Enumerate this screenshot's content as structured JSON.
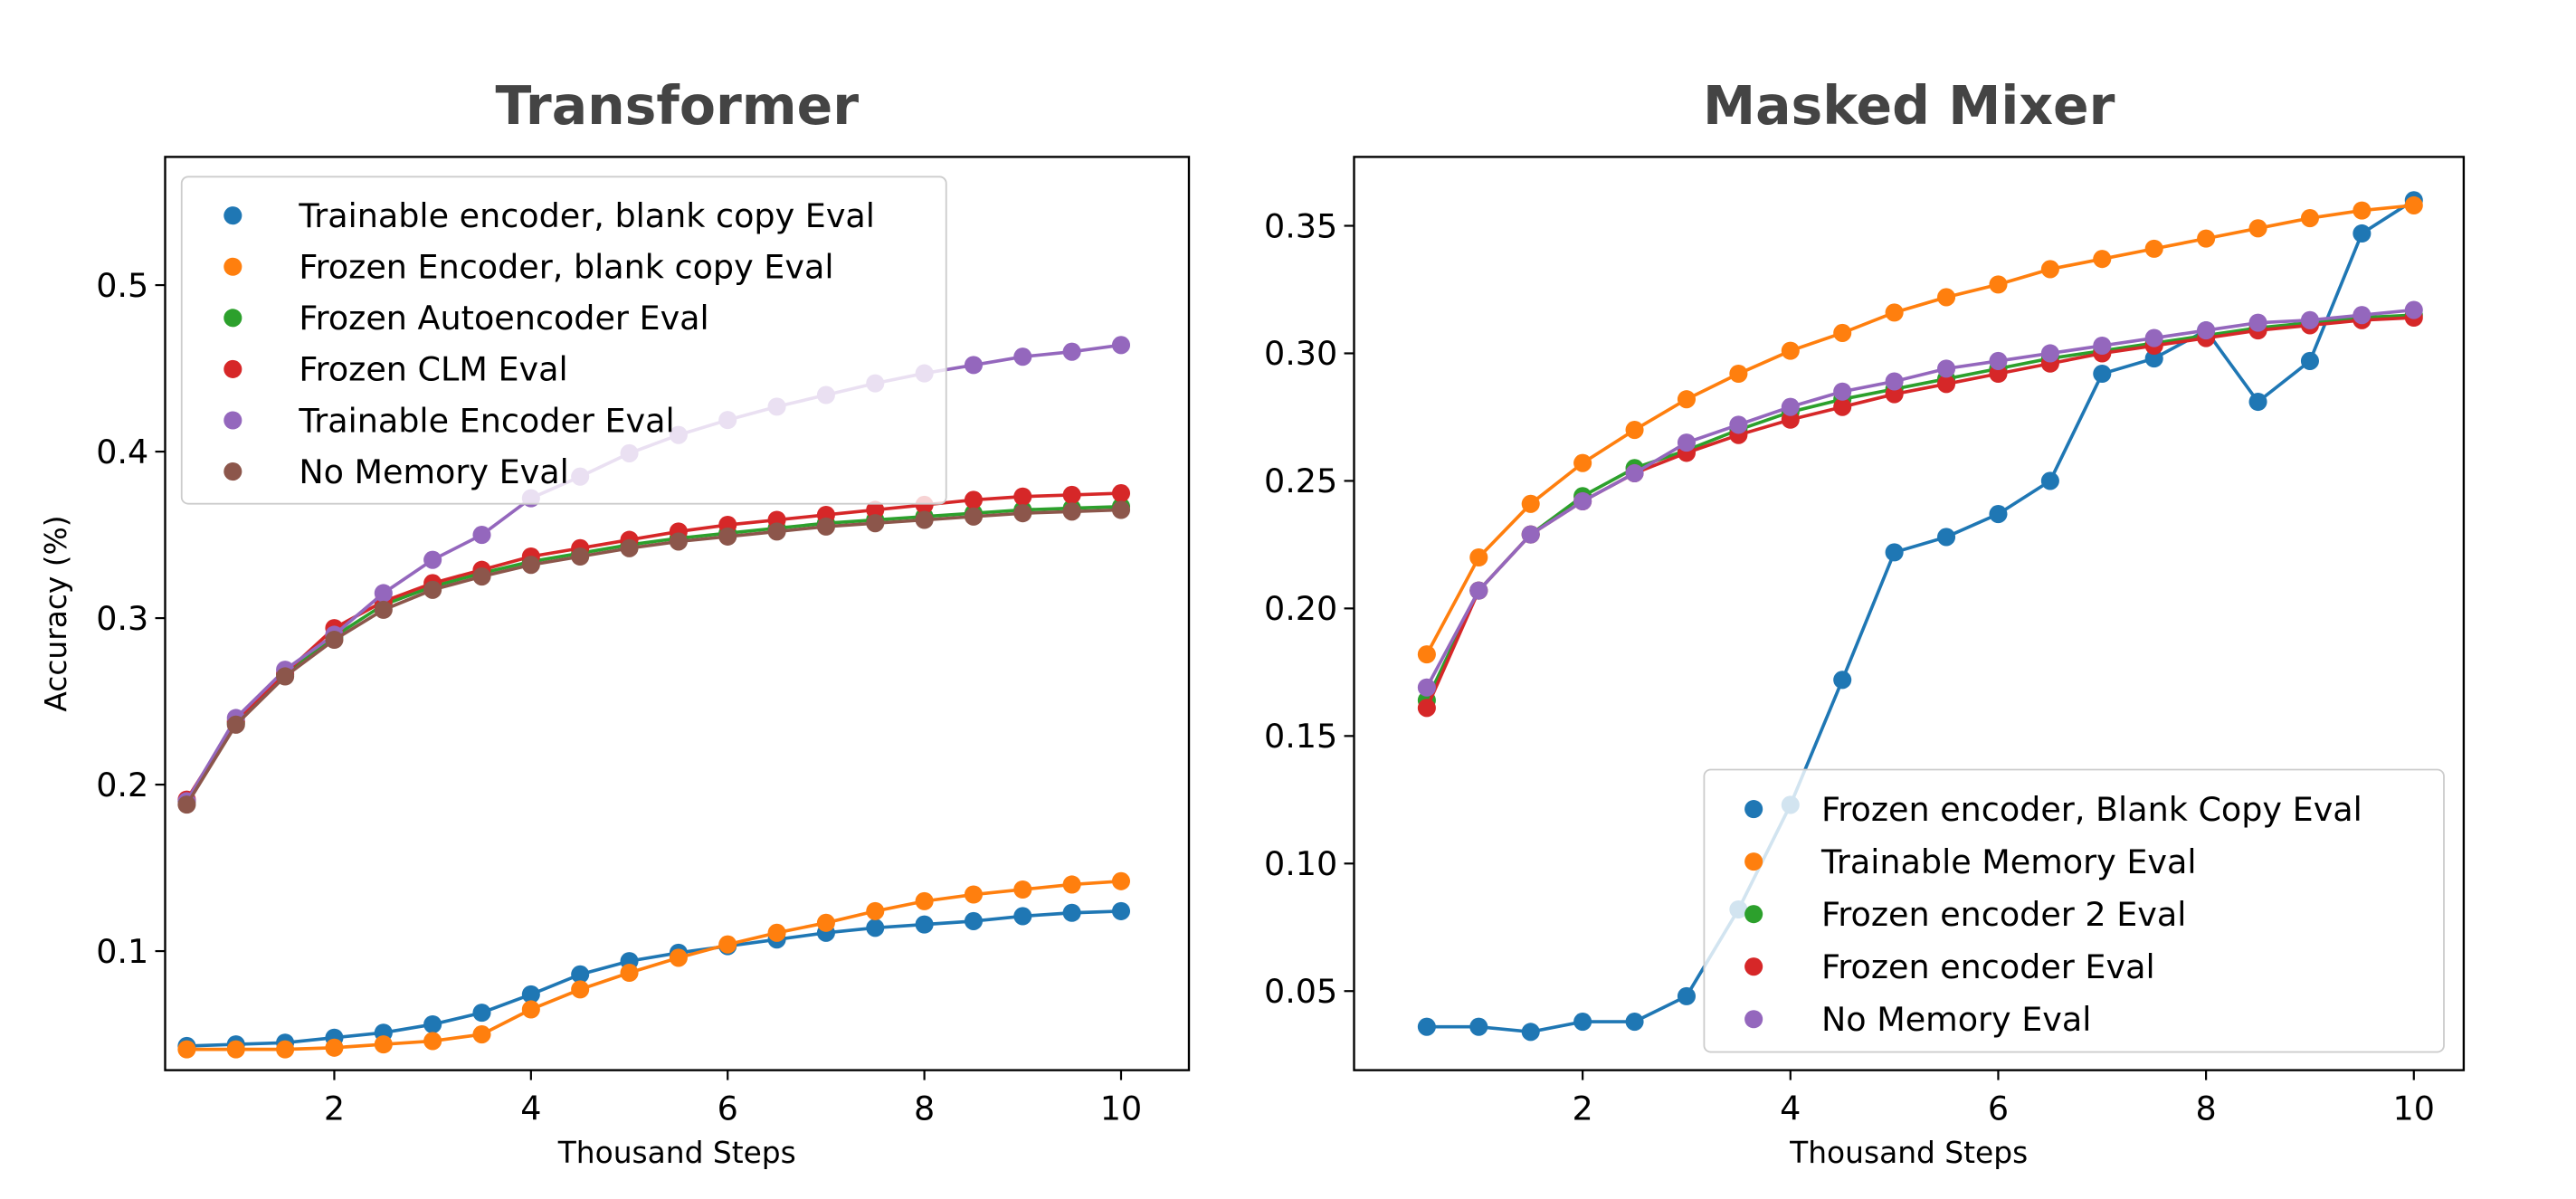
{
  "chart_data": [
    {
      "type": "line",
      "title": "Transformer",
      "xlabel": "Thousand Steps",
      "ylabel": "Accuracy (%)",
      "xlim": [
        0.28,
        10.69
      ],
      "ylim": [
        0.0285,
        0.577
      ],
      "xticks": [
        2,
        4,
        6,
        8,
        10
      ],
      "yticks": [
        0.1,
        0.2,
        0.3,
        0.4,
        0.5
      ],
      "ytick_labels": [
        "0.1",
        "0.2",
        "0.3",
        "0.4",
        "0.5"
      ],
      "grid": false,
      "legend_position": "top-left",
      "x": [
        0.5,
        1,
        1.5,
        2,
        2.5,
        3,
        3.5,
        4,
        4.5,
        5,
        5.5,
        6,
        6.5,
        7,
        7.5,
        8,
        8.5,
        9,
        9.5,
        10
      ],
      "series": [
        {
          "name": "Trainable encoder, blank copy Eval",
          "color": "#1f77b4",
          "values": [
            0.043,
            0.044,
            0.045,
            0.048,
            0.051,
            0.056,
            0.063,
            0.074,
            0.086,
            0.094,
            0.099,
            0.103,
            0.107,
            0.111,
            0.114,
            0.116,
            0.118,
            0.121,
            0.123,
            0.124
          ]
        },
        {
          "name": "Frozen Encoder, blank copy Eval",
          "color": "#ff7f0e",
          "values": [
            0.041,
            0.041,
            0.041,
            0.042,
            0.044,
            0.046,
            0.05,
            0.065,
            0.077,
            0.087,
            0.096,
            0.104,
            0.111,
            0.117,
            0.124,
            0.13,
            0.134,
            0.137,
            0.14,
            0.142
          ]
        },
        {
          "name": "Frozen Autoencoder Eval",
          "color": "#2ca02c",
          "values": [
            0.19,
            0.237,
            0.266,
            0.289,
            0.308,
            0.319,
            0.327,
            0.334,
            0.339,
            0.344,
            0.348,
            0.351,
            0.354,
            0.357,
            0.359,
            0.361,
            0.363,
            0.365,
            0.366,
            0.367
          ]
        },
        {
          "name": "Frozen CLM Eval",
          "color": "#d62728",
          "values": [
            0.191,
            0.238,
            0.267,
            0.294,
            0.31,
            0.321,
            0.329,
            0.337,
            0.342,
            0.347,
            0.352,
            0.356,
            0.359,
            0.362,
            0.365,
            0.368,
            0.371,
            0.373,
            0.374,
            0.375
          ]
        },
        {
          "name": "Trainable Encoder Eval",
          "color": "#9467bd",
          "values": [
            0.19,
            0.24,
            0.269,
            0.29,
            0.315,
            0.335,
            0.35,
            0.372,
            0.385,
            0.399,
            0.41,
            0.419,
            0.427,
            0.434,
            0.441,
            0.447,
            0.452,
            0.457,
            0.46,
            0.464
          ]
        },
        {
          "name": "No Memory Eval",
          "color": "#8c564b",
          "values": [
            0.188,
            0.236,
            0.265,
            0.287,
            0.305,
            0.317,
            0.325,
            0.332,
            0.337,
            0.342,
            0.346,
            0.349,
            0.352,
            0.355,
            0.357,
            0.359,
            0.361,
            0.363,
            0.364,
            0.365
          ]
        }
      ]
    },
    {
      "type": "line",
      "title": "Masked Mixer",
      "xlabel": "Thousand Steps",
      "ylabel": "",
      "xlim": [
        -0.2,
        10.48
      ],
      "ylim": [
        0.019,
        0.377
      ],
      "xticks": [
        2,
        4,
        6,
        8,
        10
      ],
      "yticks": [
        0.05,
        0.1,
        0.15,
        0.2,
        0.25,
        0.3,
        0.35
      ],
      "ytick_labels": [
        "0.05",
        "0.10",
        "0.15",
        "0.20",
        "0.25",
        "0.30",
        "0.35"
      ],
      "grid": false,
      "legend_position": "bottom-right",
      "x": [
        0.5,
        1,
        1.5,
        2,
        2.5,
        3,
        3.5,
        4,
        4.5,
        5,
        5.5,
        6,
        6.5,
        7,
        7.5,
        8,
        8.5,
        9,
        9.5,
        10
      ],
      "series": [
        {
          "name": "Frozen encoder, Blank Copy Eval",
          "color": "#1f77b4",
          "values": [
            0.036,
            0.036,
            0.034,
            0.038,
            0.038,
            0.048,
            0.082,
            0.123,
            0.172,
            0.222,
            0.228,
            0.237,
            0.25,
            0.292,
            0.298,
            0.309,
            0.281,
            0.297,
            0.347,
            0.36
          ]
        },
        {
          "name": "Trainable Memory Eval",
          "color": "#ff7f0e",
          "values": [
            0.182,
            0.22,
            0.241,
            0.257,
            0.27,
            0.282,
            0.292,
            0.301,
            0.308,
            0.316,
            0.322,
            0.327,
            0.333,
            0.337,
            0.341,
            0.345,
            0.349,
            0.353,
            0.356,
            0.358
          ]
        },
        {
          "name": "Frozen encoder 2 Eval",
          "color": "#2ca02c",
          "values": [
            0.164,
            0.207,
            0.229,
            0.244,
            0.255,
            0.262,
            0.27,
            0.277,
            0.282,
            0.286,
            0.29,
            0.294,
            0.298,
            0.301,
            0.304,
            0.307,
            0.31,
            0.312,
            0.314,
            0.315
          ]
        },
        {
          "name": "Frozen encoder Eval",
          "color": "#d62728",
          "values": [
            0.161,
            0.207,
            0.229,
            0.242,
            0.253,
            0.261,
            0.268,
            0.274,
            0.279,
            0.284,
            0.288,
            0.292,
            0.296,
            0.3,
            0.303,
            0.306,
            0.309,
            0.311,
            0.313,
            0.314
          ]
        },
        {
          "name": "No Memory Eval",
          "color": "#9467bd",
          "values": [
            0.169,
            0.207,
            0.229,
            0.242,
            0.253,
            0.265,
            0.272,
            0.279,
            0.285,
            0.289,
            0.294,
            0.297,
            0.3,
            0.303,
            0.306,
            0.309,
            0.312,
            0.313,
            0.315,
            0.317
          ]
        }
      ]
    }
  ]
}
